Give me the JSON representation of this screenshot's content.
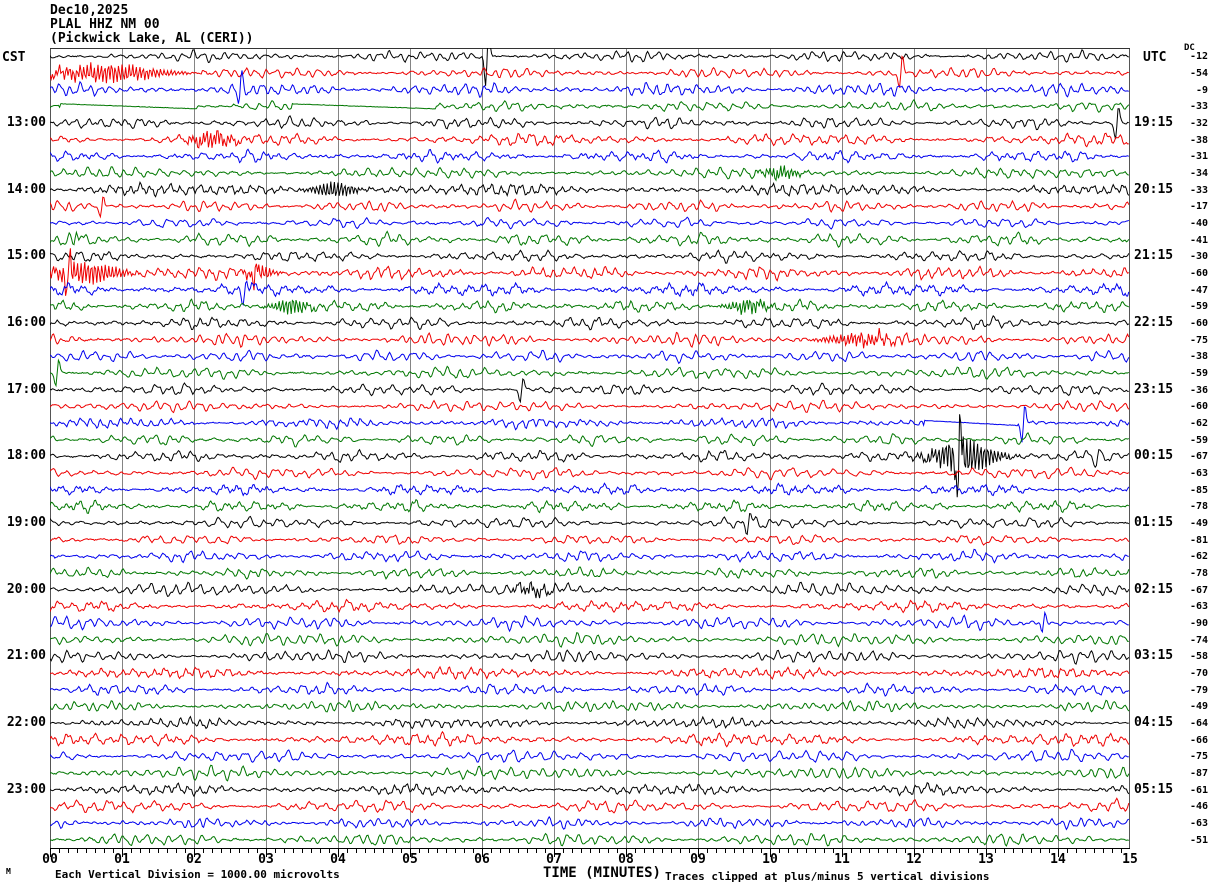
{
  "title": {
    "date": "Dec10,2025",
    "station": "PLAL HHZ NM 00",
    "location": "(Pickwick Lake, AL (CERI))"
  },
  "axes": {
    "left_header": "CST",
    "right_header": "UTC",
    "dc_header": "DC",
    "x_label": "TIME (MINUTES)",
    "x_ticks": [
      "00",
      "01",
      "02",
      "03",
      "04",
      "05",
      "06",
      "07",
      "08",
      "09",
      "10",
      "11",
      "12",
      "13",
      "14",
      "15"
    ],
    "left_times": [
      "13:00",
      "14:00",
      "15:00",
      "16:00",
      "17:00",
      "18:00",
      "19:00",
      "20:00",
      "21:00",
      "22:00",
      "23:00"
    ],
    "right_times": [
      "19:15",
      "20:15",
      "21:15",
      "22:15",
      "23:15",
      "00:15",
      "01:15",
      "02:15",
      "03:15",
      "04:15",
      "05:15"
    ],
    "label_row_start": 4,
    "label_row_step": 4
  },
  "footer": {
    "tiny_label": "M",
    "scale_note": "Each Vertical Division = 1000.00 microvolts",
    "clip_note": "Traces clipped at plus/minus 5 vertical divisions"
  },
  "chart_data": {
    "type": "line",
    "kind": "helicorder-seismogram",
    "title": "PLAL HHZ NM 00 (Pickwick Lake, AL (CERI)) Dec10,2025",
    "xlabel": "TIME (MINUTES)",
    "x_range_minutes": [
      0,
      15
    ],
    "minutes_per_line": 15,
    "rows_count": 48,
    "grid": "vertical-minute-lines",
    "trace_color_cycle": [
      "#000000",
      "#ee0000",
      "#0000ee",
      "#007700"
    ],
    "dc_values": [
      -12,
      -54,
      -9,
      -33,
      -32,
      -38,
      -31,
      -34,
      -33,
      -17,
      -40,
      -41,
      -30,
      -60,
      -47,
      -59,
      -60,
      -75,
      -38,
      -59,
      -36,
      -60,
      -62,
      -59,
      -67,
      -63,
      -85,
      -78,
      -49,
      -81,
      -62,
      -78,
      -67,
      -63,
      -90,
      -74,
      -58,
      -70,
      -79,
      -49,
      -64,
      -66,
      -75,
      -87,
      -61,
      -46,
      -63,
      -51
    ],
    "clip_divisions": 5,
    "seed": 1337,
    "events": [
      {
        "row": 0,
        "type": "spike",
        "t": 6.07,
        "amp": 28
      },
      {
        "row": 1,
        "type": "burst",
        "t": 0.8,
        "w": 0.55,
        "amp": 9
      },
      {
        "row": 1,
        "type": "spike",
        "t": 11.82,
        "amp": 18
      },
      {
        "row": 2,
        "type": "spike",
        "t": 2.64,
        "amp": 14
      },
      {
        "row": 3,
        "type": "flat",
        "from": 0.15,
        "to": 2.05
      },
      {
        "row": 3,
        "type": "flat",
        "from": 3.35,
        "to": 5.35
      },
      {
        "row": 4,
        "type": "spike",
        "t": 14.82,
        "amp": 16
      },
      {
        "row": 5,
        "type": "burst",
        "t": 2.25,
        "w": 0.22,
        "amp": 8
      },
      {
        "row": 7,
        "type": "burst",
        "t": 10.15,
        "w": 0.18,
        "amp": 6
      },
      {
        "row": 8,
        "type": "burst",
        "t": 3.95,
        "w": 0.22,
        "amp": 8
      },
      {
        "row": 9,
        "type": "spike",
        "t": 0.72,
        "amp": 12
      },
      {
        "row": 11,
        "type": "spike",
        "t": 0.35,
        "amp": 9
      },
      {
        "row": 13,
        "type": "burst",
        "t": 0.5,
        "w": 0.35,
        "amp": 11
      },
      {
        "row": 13,
        "type": "spike",
        "t": 0.25,
        "amp": 24
      },
      {
        "row": 13,
        "type": "burst",
        "t": 2.9,
        "w": 0.15,
        "amp": 7
      },
      {
        "row": 13,
        "type": "spike",
        "t": 2.85,
        "amp": 12
      },
      {
        "row": 14,
        "type": "spike",
        "t": 2.7,
        "amp": 14
      },
      {
        "row": 15,
        "type": "burst",
        "t": 3.35,
        "w": 0.18,
        "amp": 8
      },
      {
        "row": 15,
        "type": "burst",
        "t": 9.7,
        "w": 0.2,
        "amp": 7
      },
      {
        "row": 17,
        "type": "burst",
        "t": 11.25,
        "w": 0.35,
        "amp": 6
      },
      {
        "row": 19,
        "type": "spike",
        "t": 0.1,
        "amp": 13
      },
      {
        "row": 20,
        "type": "spike",
        "t": 6.55,
        "amp": 11
      },
      {
        "row": 22,
        "type": "flat",
        "from": 12.15,
        "to": 13.45
      },
      {
        "row": 22,
        "type": "spike",
        "t": 13.52,
        "amp": 20
      },
      {
        "row": 24,
        "type": "burst",
        "t": 12.7,
        "w": 0.3,
        "amp": 18
      },
      {
        "row": 24,
        "type": "spike",
        "t": 12.62,
        "amp": 40
      },
      {
        "row": 24,
        "type": "spike",
        "t": 14.55,
        "amp": 8
      },
      {
        "row": 28,
        "type": "spike",
        "t": 9.7,
        "amp": 8
      },
      {
        "row": 32,
        "type": "burst",
        "t": 6.7,
        "w": 0.18,
        "amp": 5
      },
      {
        "row": 34,
        "type": "spike",
        "t": 13.8,
        "amp": 10
      }
    ]
  },
  "colors": {
    "grid_line": "#848484",
    "plot_border": "#555555",
    "axis_line": "#000000"
  }
}
